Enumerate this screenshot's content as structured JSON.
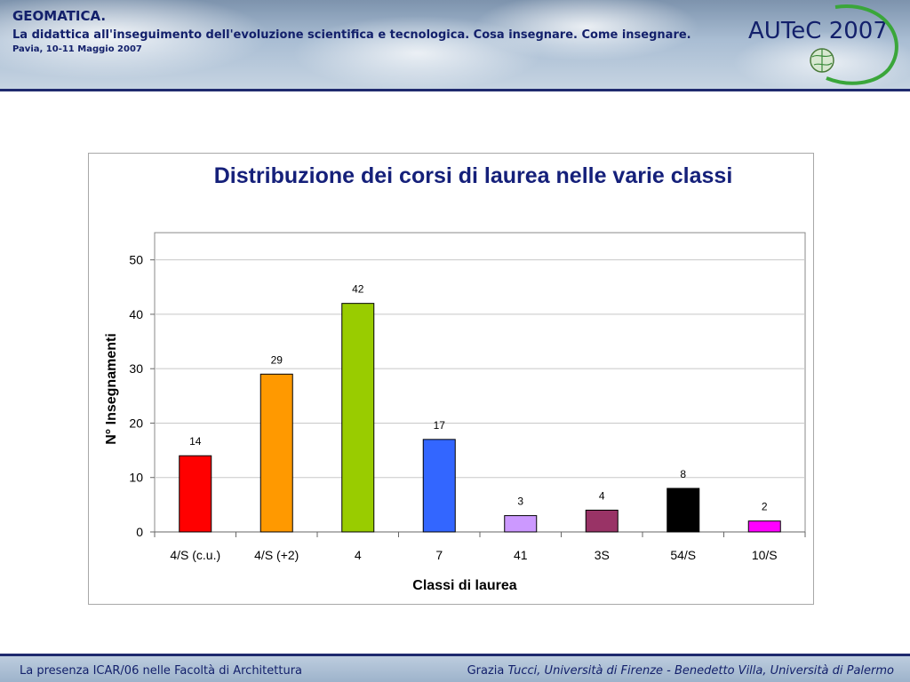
{
  "header": {
    "title": "GEOMATICA.",
    "subtitle": "La didattica all'inseguimento dell'evoluzione scientifica e tecnologica. Cosa insegnare. Come insegnare.",
    "date": "Pavia, 10-11 Maggio 2007",
    "brand": "AUTeC 2007"
  },
  "footer": {
    "left": "La presenza ICAR/06 nelle Facoltà di Architettura",
    "right_prefix": "Grazia ",
    "right_italic": "Tucci, Università di Firenze - Benedetto Villa, Università di Palermo"
  },
  "colors": {
    "title": "#15207a",
    "header_text": "#13206b",
    "rule": "#1f2a6e"
  },
  "chart_data": {
    "type": "bar",
    "title": "Distribuzione dei corsi di laurea nelle varie classi",
    "xlabel": "Classi di laurea",
    "ylabel": "N° Insegnamenti",
    "categories": [
      "4/S (c.u.)",
      "4/S (+2)",
      "4",
      "7",
      "41",
      "3S",
      "54/S",
      "10/S"
    ],
    "values": [
      14,
      29,
      42,
      17,
      3,
      4,
      8,
      2
    ],
    "bar_colors": [
      "#ff0000",
      "#ff9900",
      "#99cc00",
      "#3366ff",
      "#cc99ff",
      "#993366",
      "#000000",
      "#ff00ff"
    ],
    "ylim": [
      0,
      55
    ],
    "yticks": [
      0,
      10,
      20,
      30,
      40,
      50
    ],
    "grid": true,
    "data_labels": true
  }
}
